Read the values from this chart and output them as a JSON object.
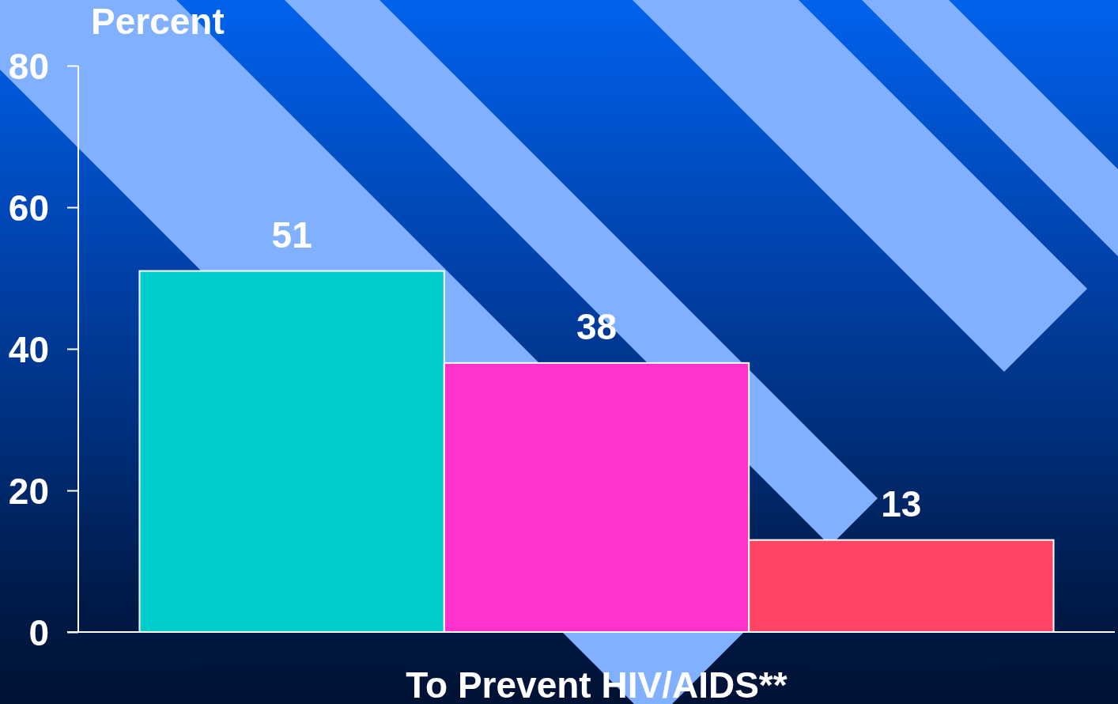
{
  "chart_data": {
    "type": "bar",
    "ylabel": "Percent",
    "categories": [
      "To Prevent HIV/AIDS**"
    ],
    "series": [
      {
        "color": "#00cccc",
        "values": [
          51
        ]
      },
      {
        "color": "#ff33cc",
        "values": [
          38
        ]
      },
      {
        "color": "#ff4466",
        "values": [
          13
        ]
      }
    ],
    "ylim": [
      0,
      80
    ],
    "yticks": [
      0,
      20,
      40,
      60,
      80
    ],
    "data_labels": true
  }
}
